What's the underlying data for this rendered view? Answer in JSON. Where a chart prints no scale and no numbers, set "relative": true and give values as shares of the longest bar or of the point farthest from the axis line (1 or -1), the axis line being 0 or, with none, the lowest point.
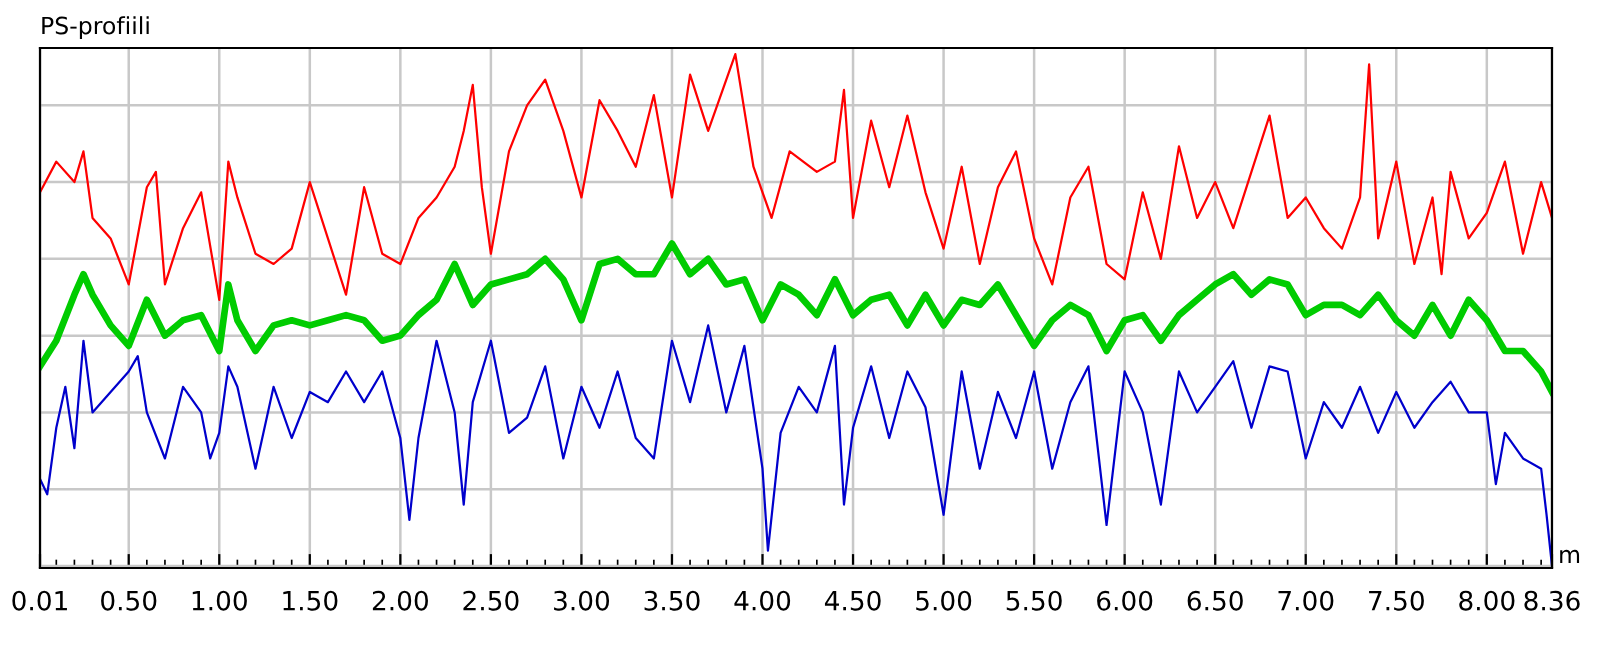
{
  "chart_data": {
    "type": "line",
    "title": "PS-profiili",
    "xlabel": "m",
    "relative": true,
    "grid": true,
    "legend": false,
    "tick_labels": "x",
    "marker": "none",
    "line_style": "solid",
    "xlim": [
      0.01,
      8.36
    ],
    "xticks": [
      {
        "value": 0.01,
        "label": "0.01"
      },
      {
        "value": 0.5,
        "label": "0.50"
      },
      {
        "value": 1.0,
        "label": "1.00"
      },
      {
        "value": 1.5,
        "label": "1.50"
      },
      {
        "value": 2.0,
        "label": "2.00"
      },
      {
        "value": 2.5,
        "label": "2.50"
      },
      {
        "value": 3.0,
        "label": "3.00"
      },
      {
        "value": 3.5,
        "label": "3.50"
      },
      {
        "value": 4.0,
        "label": "4.00"
      },
      {
        "value": 4.5,
        "label": "4.50"
      },
      {
        "value": 5.0,
        "label": "5.00"
      },
      {
        "value": 5.5,
        "label": "5.50"
      },
      {
        "value": 6.0,
        "label": "6.00"
      },
      {
        "value": 6.5,
        "label": "6.50"
      },
      {
        "value": 7.0,
        "label": "7.00"
      },
      {
        "value": 7.5,
        "label": "7.50"
      },
      {
        "value": 8.0,
        "label": "8.00"
      },
      {
        "value": 8.36,
        "label": "8.36"
      }
    ],
    "series": [
      {
        "color": "#ff0000",
        "x": [
          0.01,
          0.1,
          0.2,
          0.25,
          0.3,
          0.4,
          0.5,
          0.6,
          0.65,
          0.7,
          0.8,
          0.9,
          1.0,
          1.05,
          1.1,
          1.2,
          1.3,
          1.4,
          1.5,
          1.6,
          1.7,
          1.8,
          1.9,
          2.0,
          2.1,
          2.2,
          2.3,
          2.35,
          2.4,
          2.45,
          2.5,
          2.6,
          2.7,
          2.8,
          2.9,
          3.0,
          3.1,
          3.2,
          3.3,
          3.4,
          3.5,
          3.6,
          3.7,
          3.85,
          3.95,
          4.05,
          4.15,
          4.3,
          4.4,
          4.45,
          4.5,
          4.6,
          4.7,
          4.8,
          4.9,
          5.0,
          5.1,
          5.2,
          5.3,
          5.4,
          5.5,
          5.6,
          5.7,
          5.8,
          5.9,
          6.0,
          6.1,
          6.2,
          6.3,
          6.4,
          6.5,
          6.6,
          6.7,
          6.8,
          6.9,
          7.0,
          7.1,
          7.2,
          7.3,
          7.35,
          7.4,
          7.5,
          7.6,
          7.7,
          7.75,
          7.8,
          7.9,
          8.0,
          8.1,
          8.2,
          8.3,
          8.36
        ],
        "values": [
          0.73,
          0.79,
          0.75,
          0.81,
          0.68,
          0.64,
          0.55,
          0.74,
          0.77,
          0.55,
          0.66,
          0.73,
          0.52,
          0.79,
          0.72,
          0.61,
          0.59,
          0.62,
          0.75,
          0.64,
          0.53,
          0.74,
          0.61,
          0.59,
          0.68,
          0.72,
          0.78,
          0.85,
          0.94,
          0.74,
          0.61,
          0.81,
          0.9,
          0.95,
          0.85,
          0.72,
          0.91,
          0.85,
          0.78,
          0.92,
          0.72,
          0.96,
          0.85,
          1.0,
          0.78,
          0.68,
          0.81,
          0.77,
          0.79,
          0.93,
          0.68,
          0.87,
          0.74,
          0.88,
          0.73,
          0.62,
          0.78,
          0.59,
          0.74,
          0.81,
          0.64,
          0.55,
          0.72,
          0.78,
          0.59,
          0.56,
          0.73,
          0.6,
          0.82,
          0.68,
          0.75,
          0.66,
          0.77,
          0.88,
          0.68,
          0.72,
          0.66,
          0.62,
          0.72,
          0.98,
          0.64,
          0.79,
          0.59,
          0.72,
          0.57,
          0.77,
          0.64,
          0.69,
          0.79,
          0.61,
          0.75,
          0.68
        ]
      },
      {
        "color": "#00cc00",
        "x": [
          0.01,
          0.1,
          0.2,
          0.25,
          0.3,
          0.4,
          0.5,
          0.6,
          0.7,
          0.8,
          0.9,
          1.0,
          1.05,
          1.1,
          1.2,
          1.3,
          1.4,
          1.5,
          1.6,
          1.7,
          1.8,
          1.9,
          2.0,
          2.1,
          2.2,
          2.3,
          2.4,
          2.5,
          2.6,
          2.7,
          2.8,
          2.9,
          3.0,
          3.1,
          3.2,
          3.3,
          3.4,
          3.5,
          3.6,
          3.7,
          3.8,
          3.9,
          4.0,
          4.1,
          4.2,
          4.3,
          4.4,
          4.5,
          4.6,
          4.7,
          4.8,
          4.9,
          5.0,
          5.1,
          5.2,
          5.3,
          5.4,
          5.5,
          5.6,
          5.7,
          5.8,
          5.9,
          6.0,
          6.1,
          6.2,
          6.3,
          6.4,
          6.5,
          6.6,
          6.7,
          6.8,
          6.9,
          7.0,
          7.1,
          7.2,
          7.3,
          7.4,
          7.5,
          7.6,
          7.7,
          7.8,
          7.9,
          8.0,
          8.1,
          8.2,
          8.3,
          8.36
        ],
        "values": [
          0.39,
          0.44,
          0.53,
          0.57,
          0.53,
          0.47,
          0.43,
          0.52,
          0.45,
          0.48,
          0.49,
          0.42,
          0.55,
          0.48,
          0.42,
          0.47,
          0.48,
          0.47,
          0.48,
          0.49,
          0.48,
          0.44,
          0.45,
          0.49,
          0.52,
          0.59,
          0.51,
          0.55,
          0.56,
          0.57,
          0.6,
          0.56,
          0.48,
          0.59,
          0.6,
          0.57,
          0.57,
          0.63,
          0.57,
          0.6,
          0.55,
          0.56,
          0.48,
          0.55,
          0.53,
          0.49,
          0.56,
          0.49,
          0.52,
          0.53,
          0.47,
          0.53,
          0.47,
          0.52,
          0.51,
          0.55,
          0.49,
          0.43,
          0.48,
          0.51,
          0.49,
          0.42,
          0.48,
          0.49,
          0.44,
          0.49,
          0.52,
          0.55,
          0.57,
          0.53,
          0.56,
          0.55,
          0.49,
          0.51,
          0.51,
          0.49,
          0.53,
          0.48,
          0.45,
          0.51,
          0.45,
          0.52,
          0.48,
          0.42,
          0.42,
          0.38,
          0.34
        ]
      },
      {
        "color": "#0000cc",
        "x": [
          0.01,
          0.05,
          0.1,
          0.15,
          0.2,
          0.25,
          0.3,
          0.4,
          0.5,
          0.55,
          0.6,
          0.7,
          0.8,
          0.9,
          0.95,
          1.0,
          1.05,
          1.1,
          1.2,
          1.3,
          1.4,
          1.5,
          1.6,
          1.7,
          1.8,
          1.9,
          2.0,
          2.05,
          2.1,
          2.2,
          2.3,
          2.35,
          2.4,
          2.5,
          2.6,
          2.7,
          2.8,
          2.9,
          3.0,
          3.1,
          3.2,
          3.3,
          3.4,
          3.5,
          3.6,
          3.7,
          3.8,
          3.9,
          4.0,
          4.03,
          4.1,
          4.2,
          4.3,
          4.4,
          4.45,
          4.5,
          4.6,
          4.7,
          4.8,
          4.9,
          5.0,
          5.1,
          5.2,
          5.3,
          5.4,
          5.5,
          5.6,
          5.7,
          5.8,
          5.9,
          6.0,
          6.1,
          6.2,
          6.3,
          6.4,
          6.5,
          6.6,
          6.7,
          6.8,
          6.9,
          7.0,
          7.1,
          7.2,
          7.3,
          7.4,
          7.5,
          7.6,
          7.7,
          7.8,
          7.9,
          8.0,
          8.05,
          8.1,
          8.2,
          8.3,
          8.33,
          8.36
        ],
        "values": [
          0.17,
          0.14,
          0.27,
          0.35,
          0.23,
          0.44,
          0.3,
          0.34,
          0.38,
          0.41,
          0.3,
          0.21,
          0.35,
          0.3,
          0.21,
          0.26,
          0.39,
          0.35,
          0.19,
          0.35,
          0.25,
          0.34,
          0.32,
          0.38,
          0.32,
          0.38,
          0.25,
          0.09,
          0.25,
          0.44,
          0.3,
          0.12,
          0.32,
          0.44,
          0.26,
          0.29,
          0.39,
          0.21,
          0.35,
          0.27,
          0.38,
          0.25,
          0.21,
          0.44,
          0.32,
          0.47,
          0.3,
          0.43,
          0.19,
          0.03,
          0.26,
          0.35,
          0.3,
          0.43,
          0.12,
          0.27,
          0.39,
          0.25,
          0.38,
          0.31,
          0.1,
          0.38,
          0.19,
          0.34,
          0.25,
          0.38,
          0.19,
          0.32,
          0.39,
          0.08,
          0.38,
          0.3,
          0.12,
          0.38,
          0.3,
          0.35,
          0.4,
          0.27,
          0.39,
          0.38,
          0.21,
          0.32,
          0.27,
          0.35,
          0.26,
          0.34,
          0.27,
          0.32,
          0.36,
          0.3,
          0.3,
          0.16,
          0.26,
          0.21,
          0.19,
          0.1,
          0.0
        ]
      }
    ]
  }
}
